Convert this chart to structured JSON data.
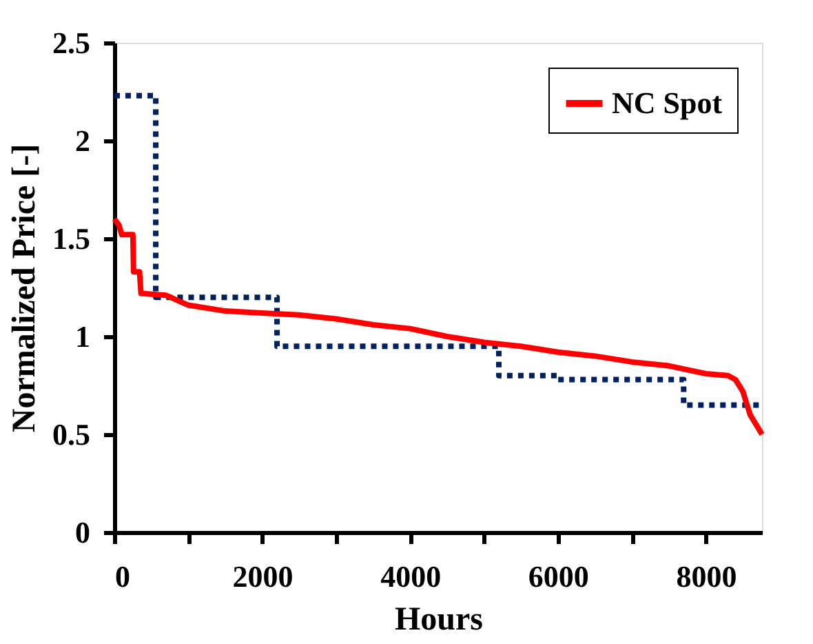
{
  "chart_data": {
    "type": "line",
    "xlabel": "Hours",
    "ylabel": "Normalized Price [-]",
    "xlim": [
      0,
      8760
    ],
    "ylim": [
      0,
      2.5
    ],
    "xticks": [
      0,
      {
        "value": 1000,
        "label": null
      },
      2000,
      {
        "value": 3000,
        "label": null
      },
      4000,
      {
        "value": 5000,
        "label": null
      },
      6000,
      {
        "value": 7000,
        "label": null
      },
      8000
    ],
    "yticks": [
      0,
      0.5,
      1,
      1.5,
      2,
      2.5
    ],
    "grid": false,
    "legend": "top right",
    "series": [
      {
        "name": "NC Spot",
        "color": "#ff0000",
        "line_style": "solid",
        "x": [
          0,
          60,
          100,
          250,
          260,
          340,
          360,
          700,
          1000,
          1500,
          2000,
          2500,
          3000,
          3500,
          4000,
          4500,
          5000,
          5500,
          6000,
          6500,
          7000,
          7500,
          8000,
          8300,
          8400,
          8500,
          8600,
          8760
        ],
        "values": [
          1.6,
          1.57,
          1.52,
          1.52,
          1.33,
          1.33,
          1.22,
          1.21,
          1.16,
          1.13,
          1.12,
          1.11,
          1.09,
          1.06,
          1.04,
          1.0,
          0.97,
          0.95,
          0.92,
          0.9,
          0.87,
          0.85,
          0.81,
          0.8,
          0.78,
          0.72,
          0.6,
          0.5
        ]
      },
      {
        "type": "step",
        "color": "#002060",
        "line_style": "dotted",
        "x": [
          0,
          560,
          2200,
          5200,
          6000,
          7700,
          8760
        ],
        "values": [
          2.23,
          1.2,
          0.95,
          0.8,
          0.78,
          0.65,
          0.65
        ]
      }
    ]
  }
}
